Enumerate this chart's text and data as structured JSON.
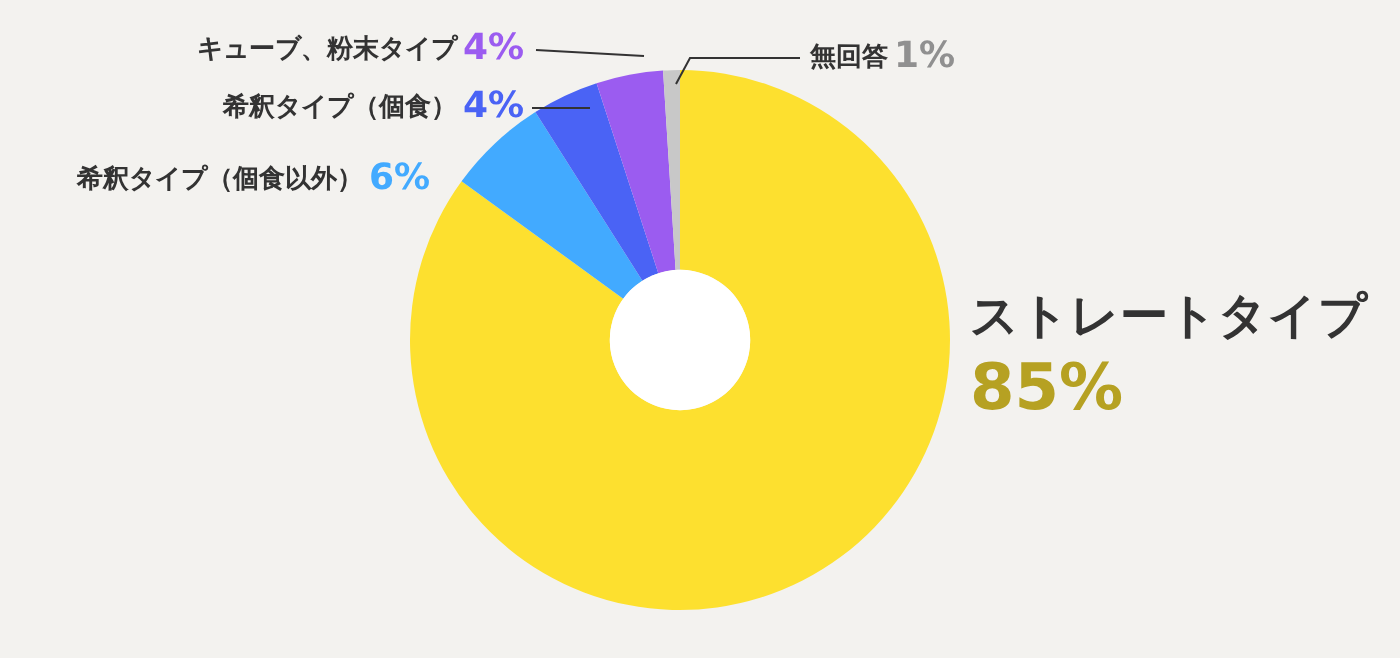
{
  "chart_data": {
    "type": "donut",
    "categories": [
      "ストレートタイプ",
      "希釈タイプ（個食以外）",
      "希釈タイプ（個食）",
      "キューブ、粉末タイプ",
      "無回答"
    ],
    "values": [
      85,
      6,
      4,
      4,
      1
    ],
    "colors": [
      "#fde02f",
      "#42aaff",
      "#4a63f5",
      "#9b5cf0",
      "#c8c8c8"
    ],
    "value_labels": [
      "85%",
      "6%",
      "4%",
      "4%",
      "1%"
    ],
    "legend": false
  }
}
